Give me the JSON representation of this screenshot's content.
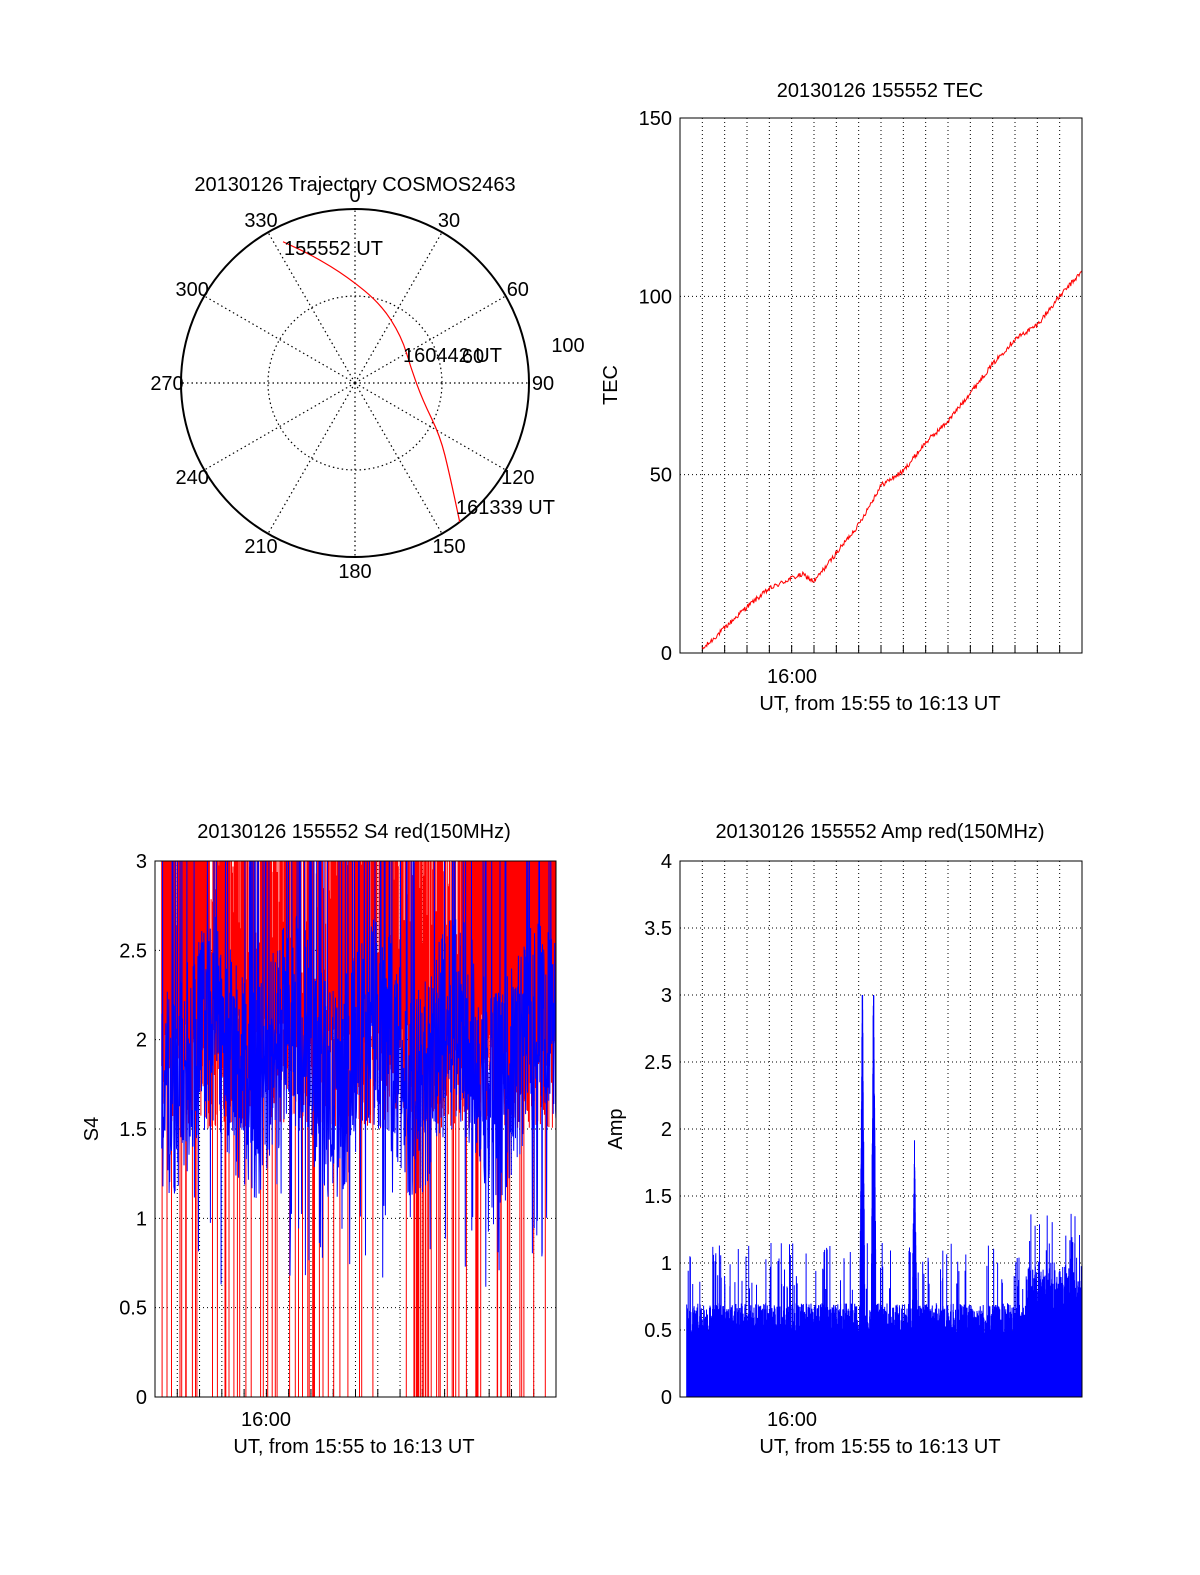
{
  "colors": {
    "red": "#ff0000",
    "blue": "#0000ff",
    "axis": "#000000",
    "grid": "#000000"
  },
  "chart_data": [
    {
      "id": "trajectory",
      "type": "polar",
      "title": "20130126 Trajectory COSMOS2463",
      "azimuth_labels": [
        "0",
        "30",
        "60",
        "90",
        "120",
        "150",
        "180",
        "210",
        "240",
        "270",
        "300",
        "330"
      ],
      "ring_labels": [
        "60",
        "100"
      ],
      "track_label_start": "155552 UT",
      "track_label_mid": "160442 UT",
      "track_label_end": "161339 UT",
      "track": [
        {
          "az": 333,
          "el": 8
        },
        {
          "az": 342,
          "el": 21
        },
        {
          "az": 356,
          "el": 35
        },
        {
          "az": 18,
          "el": 47
        },
        {
          "az": 45,
          "el": 56
        },
        {
          "az": 76,
          "el": 60
        },
        {
          "az": 104,
          "el": 54
        },
        {
          "az": 122,
          "el": 38
        },
        {
          "az": 134,
          "el": 22
        },
        {
          "az": 143,
          "el": 0
        }
      ]
    },
    {
      "id": "tec",
      "type": "line",
      "title": "20130126 155552 TEC",
      "xlabel": "UT, from 15:55 to 16:13 UT",
      "ylabel": "TEC",
      "x_tick_labels": [
        "16:00"
      ],
      "y_tick_labels": [
        "0",
        "50",
        "100",
        "150"
      ],
      "ylim": [
        0,
        150
      ],
      "xlim": [
        "15:55",
        "16:13"
      ],
      "grid": true,
      "series": [
        {
          "color": "red",
          "x": [
            "15:56",
            "15:56:30",
            "15:57",
            "15:58",
            "15:59",
            "16:00",
            "16:00:30",
            "16:01",
            "16:02",
            "16:03",
            "16:04",
            "16:05",
            "16:06",
            "16:07",
            "16:08",
            "16:09",
            "16:10",
            "16:11",
            "16:12",
            "16:13"
          ],
          "values": [
            1,
            4,
            7,
            13,
            18,
            21,
            22,
            20,
            28,
            36,
            47,
            51,
            59,
            65,
            73,
            81,
            88,
            92,
            100,
            107
          ]
        }
      ]
    },
    {
      "id": "s4",
      "type": "line",
      "title": "20130126 155552 S4 red(150MHz)",
      "xlabel": "UT, from 15:55 to 16:13 UT",
      "ylabel": "S4",
      "x_tick_labels": [
        "16:00"
      ],
      "y_tick_labels": [
        "0",
        "0.5",
        "1",
        "1.5",
        "2",
        "2.5",
        "3"
      ],
      "ylim": [
        0,
        3
      ],
      "xlim": [
        "15:55",
        "16:13"
      ],
      "grid": true,
      "series": [
        {
          "color": "blue",
          "note_values": "noisy trace around 1.5-2.5 with dips to ~0.6"
        },
        {
          "color": "red",
          "note_values": "spikes saturating at 3"
        }
      ]
    },
    {
      "id": "amp",
      "type": "line",
      "title": "20130126 155552 Amp red(150MHz)",
      "xlabel": "UT, from 15:55 to 16:13 UT",
      "ylabel": "Amp",
      "x_tick_labels": [
        "16:00"
      ],
      "y_tick_labels": [
        "0",
        "0.5",
        "1",
        "1.5",
        "2",
        "2.5",
        "3",
        "3.5",
        "4"
      ],
      "ylim": [
        0,
        4
      ],
      "xlim": [
        "15:55",
        "16:13"
      ],
      "grid": true,
      "series": [
        {
          "color": "blue",
          "note_values": "dense noise 0-0.7, spikes to 3.0 near 16:03"
        }
      ]
    }
  ]
}
